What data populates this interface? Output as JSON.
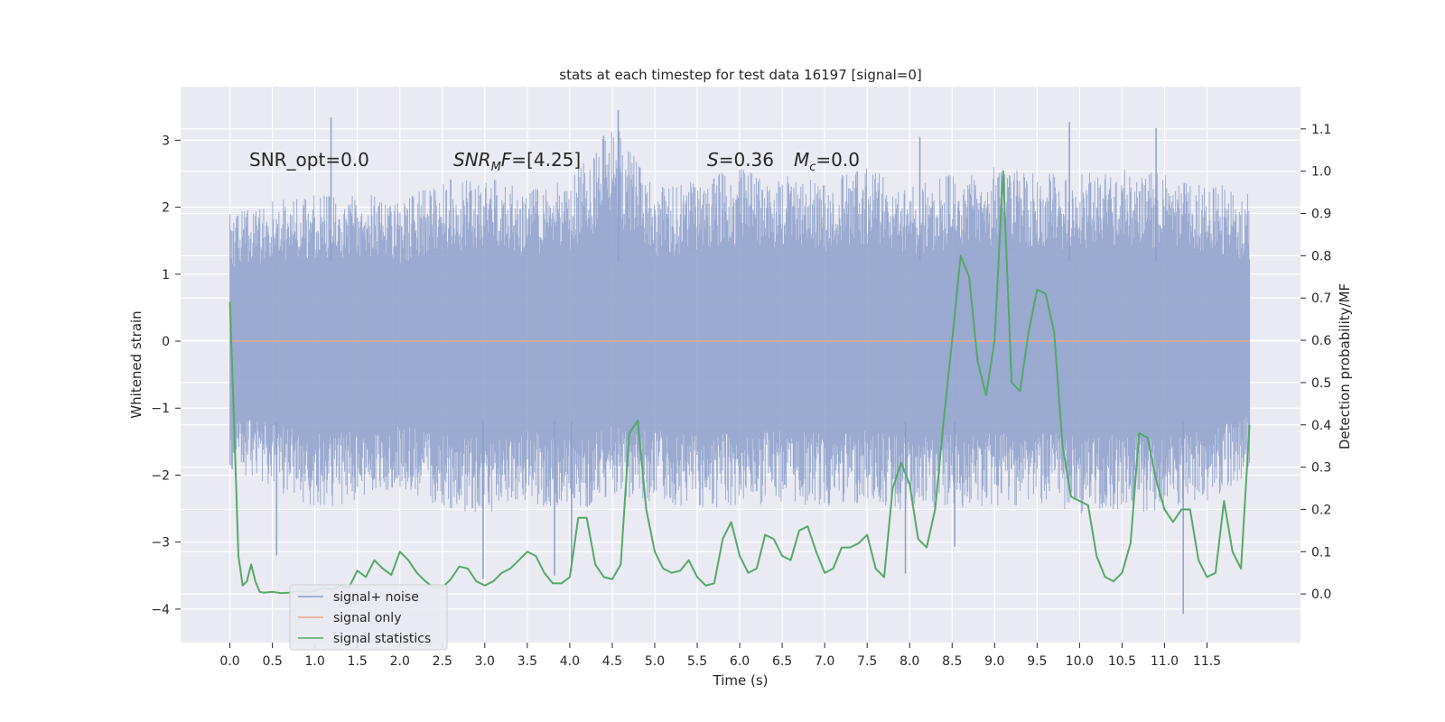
{
  "chart_data": {
    "type": "line",
    "title": "stats at each timestep for test data 16197 [signal=0]",
    "xlabel": "Time (s)",
    "ylabel_left": "Whitened strain",
    "ylabel_right": "Detection probability/MF",
    "xlim": [
      -0.58,
      12.6
    ],
    "ylim_left": [
      -4.5,
      3.8
    ],
    "ylim_right": [
      -0.115,
      1.2
    ],
    "x_ticks": [
      0.0,
      0.5,
      1.0,
      1.5,
      2.0,
      2.5,
      3.0,
      3.5,
      4.0,
      4.5,
      5.0,
      5.5,
      6.0,
      6.5,
      7.0,
      7.5,
      8.0,
      8.5,
      9.0,
      9.5,
      10.0,
      10.5,
      11.0,
      11.5
    ],
    "x_tick_labels": [
      "0.0",
      "0.5",
      "1.0",
      "1.5",
      "2.0",
      "2.5",
      "3.0",
      "3.5",
      "4.0",
      "4.5",
      "5.0",
      "5.5",
      "6.0",
      "6.5",
      "7.0",
      "7.5",
      "8.0",
      "8.5",
      "9.0",
      "9.5",
      "10.0",
      "10.5",
      "11.0",
      "11.5"
    ],
    "y_left_ticks": [
      -4,
      -3,
      -2,
      -1,
      0,
      1,
      2,
      3
    ],
    "y_left_tick_labels": [
      "−4",
      "−3",
      "−2",
      "−1",
      "0",
      "1",
      "2",
      "3"
    ],
    "y_right_ticks": [
      0.0,
      0.1,
      0.2,
      0.3,
      0.4,
      0.5,
      0.6,
      0.7,
      0.8,
      0.9,
      1.0,
      1.1
    ],
    "y_right_tick_labels": [
      "0.0",
      "0.1",
      "0.2",
      "0.3",
      "0.4",
      "0.5",
      "0.6",
      "0.7",
      "0.8",
      "0.9",
      "1.0",
      "1.1"
    ],
    "grid": true,
    "legend_position": "lower-left",
    "annotations": {
      "snr_opt": "SNR_opt=0.0",
      "snr_mf": "=[4.25]",
      "s_value": "=0.36",
      "mc_value": "=0.0"
    },
    "series": [
      {
        "name": "signal+ noise",
        "axis": "left",
        "color": "#8c9fca",
        "t_range": [
          0.0,
          12.0
        ],
        "envelope": {
          "t": [
            0.0,
            0.5,
            1.0,
            1.5,
            2.0,
            2.5,
            3.0,
            3.5,
            4.0,
            4.5,
            5.0,
            5.5,
            6.0,
            6.5,
            7.0,
            7.5,
            8.0,
            8.5,
            9.0,
            9.5,
            10.0,
            10.5,
            11.0,
            11.5,
            12.0
          ],
          "upper": [
            1.9,
            2.1,
            2.2,
            2.3,
            2.1,
            2.4,
            2.5,
            2.3,
            2.4,
            3.3,
            2.3,
            2.4,
            2.6,
            2.5,
            2.4,
            2.6,
            2.3,
            2.5,
            2.6,
            2.5,
            2.5,
            2.6,
            2.5,
            2.4,
            2.2
          ],
          "lower": [
            -1.9,
            -2.2,
            -2.5,
            -2.4,
            -2.2,
            -2.5,
            -2.6,
            -2.4,
            -2.6,
            -2.3,
            -2.4,
            -2.5,
            -2.5,
            -2.4,
            -2.5,
            -2.4,
            -2.6,
            -2.5,
            -2.5,
            -2.4,
            -2.6,
            -2.5,
            -2.6,
            -2.4,
            -2.0
          ],
          "spikes": [
            [
              1.19,
              3.34
            ],
            [
              4.57,
              3.45
            ],
            [
              9.88,
              3.27
            ],
            [
              10.9,
              3.18
            ],
            [
              8.12,
              3.05
            ],
            [
              2.98,
              -3.55
            ],
            [
              11.22,
              -4.07
            ],
            [
              3.82,
              -3.5
            ],
            [
              0.55,
              -3.2
            ],
            [
              7.95,
              -3.47
            ],
            [
              8.53,
              -3.07
            ],
            [
              4.02,
              -3.43
            ]
          ]
        }
      },
      {
        "name": "signal only",
        "axis": "left",
        "color": "#e8a787",
        "x": [
          0.0,
          12.0
        ],
        "y": [
          0.0,
          0.0
        ]
      },
      {
        "name": "signal statistics",
        "axis": "right",
        "color": "#55a868",
        "x": [
          0.0,
          0.05,
          0.1,
          0.15,
          0.2,
          0.25,
          0.3,
          0.35,
          0.4,
          0.5,
          0.6,
          0.7,
          0.8,
          0.9,
          1.0,
          1.1,
          1.2,
          1.3,
          1.4,
          1.5,
          1.6,
          1.7,
          1.8,
          1.9,
          2.0,
          2.1,
          2.2,
          2.3,
          2.4,
          2.5,
          2.6,
          2.7,
          2.8,
          2.9,
          3.0,
          3.1,
          3.2,
          3.3,
          3.4,
          3.5,
          3.6,
          3.7,
          3.8,
          3.9,
          4.0,
          4.1,
          4.2,
          4.3,
          4.4,
          4.5,
          4.6,
          4.7,
          4.8,
          4.9,
          5.0,
          5.1,
          5.2,
          5.3,
          5.4,
          5.5,
          5.6,
          5.7,
          5.8,
          5.9,
          6.0,
          6.1,
          6.2,
          6.3,
          6.4,
          6.5,
          6.6,
          6.7,
          6.8,
          6.9,
          7.0,
          7.1,
          7.2,
          7.3,
          7.4,
          7.5,
          7.6,
          7.7,
          7.8,
          7.9,
          8.0,
          8.1,
          8.2,
          8.3,
          8.4,
          8.5,
          8.6,
          8.7,
          8.8,
          8.9,
          9.0,
          9.1,
          9.2,
          9.3,
          9.4,
          9.5,
          9.6,
          9.7,
          9.8,
          9.9,
          10.0,
          10.1,
          10.2,
          10.3,
          10.4,
          10.5,
          10.6,
          10.7,
          10.8,
          10.9,
          11.0,
          11.1,
          11.2,
          11.3,
          11.4,
          11.5,
          11.6,
          11.7,
          11.8,
          11.9,
          12.0
        ],
        "y": [
          0.69,
          0.4,
          0.09,
          0.02,
          0.03,
          0.07,
          0.03,
          0.005,
          0.003,
          0.005,
          0.002,
          0.003,
          0.008,
          0.004,
          0.007,
          0.015,
          0.01,
          0.02,
          0.015,
          0.055,
          0.04,
          0.08,
          0.06,
          0.045,
          0.1,
          0.08,
          0.05,
          0.03,
          0.015,
          0.015,
          0.035,
          0.065,
          0.06,
          0.03,
          0.02,
          0.03,
          0.05,
          0.06,
          0.08,
          0.1,
          0.09,
          0.05,
          0.025,
          0.025,
          0.04,
          0.18,
          0.18,
          0.07,
          0.04,
          0.035,
          0.07,
          0.38,
          0.41,
          0.2,
          0.1,
          0.06,
          0.05,
          0.055,
          0.08,
          0.04,
          0.02,
          0.025,
          0.13,
          0.17,
          0.09,
          0.05,
          0.06,
          0.14,
          0.13,
          0.09,
          0.08,
          0.15,
          0.16,
          0.1,
          0.05,
          0.06,
          0.11,
          0.11,
          0.12,
          0.14,
          0.06,
          0.04,
          0.25,
          0.31,
          0.26,
          0.13,
          0.11,
          0.2,
          0.41,
          0.6,
          0.8,
          0.75,
          0.55,
          0.47,
          0.6,
          1.0,
          0.5,
          0.48,
          0.62,
          0.72,
          0.71,
          0.62,
          0.35,
          0.23,
          0.22,
          0.21,
          0.09,
          0.04,
          0.03,
          0.05,
          0.12,
          0.38,
          0.37,
          0.27,
          0.2,
          0.17,
          0.2,
          0.2,
          0.08,
          0.04,
          0.05,
          0.22,
          0.1,
          0.06,
          0.4
        ]
      }
    ]
  }
}
